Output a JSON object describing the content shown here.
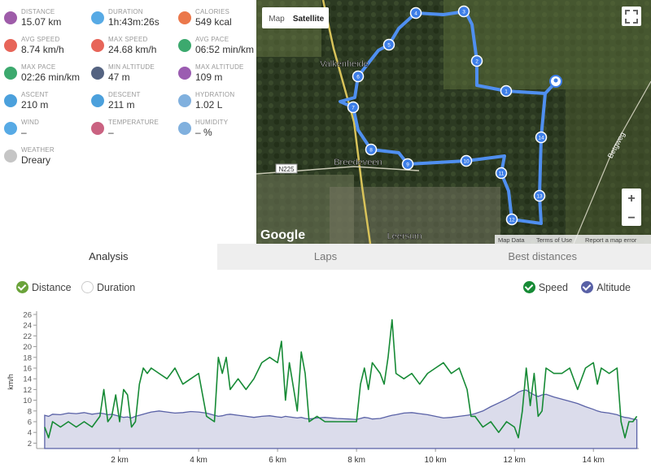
{
  "stats": [
    {
      "label": "DISTANCE",
      "value": "15.07 km"
    },
    {
      "label": "DURATION",
      "value": "1h:43m:26s"
    },
    {
      "label": "CALORIES",
      "value": "549 kcal"
    },
    {
      "label": "AVG SPEED",
      "value": "8.74 km/h"
    },
    {
      "label": "MAX SPEED",
      "value": "24.68 km/h"
    },
    {
      "label": "AVG PACE",
      "value": "06:52 min/km"
    },
    {
      "label": "MAX PACE",
      "value": "02:26 min/km"
    },
    {
      "label": "MIN ALTITUDE",
      "value": "47 m"
    },
    {
      "label": "MAX ALTITUDE",
      "value": "109 m"
    },
    {
      "label": "ASCENT",
      "value": "210 m"
    },
    {
      "label": "DESCENT",
      "value": "211 m"
    },
    {
      "label": "HYDRATION",
      "value": "1.02 L"
    },
    {
      "label": "WIND",
      "value": "–"
    },
    {
      "label": "TEMPERATURE",
      "value": "–"
    },
    {
      "label": "HUMIDITY",
      "value": "– %"
    },
    {
      "label": "WEATHER",
      "value": "Dreary"
    }
  ],
  "map": {
    "view_buttons": [
      "Map",
      "Satellite"
    ],
    "places": [
      "Valkenheide",
      "Breedeveen",
      "Leersum"
    ],
    "road": "N225",
    "street": "Betgweg",
    "logo": "Google",
    "footer": [
      "Map Data",
      "Terms of Use",
      "Report a map error"
    ],
    "zoom": [
      "+",
      "−"
    ],
    "waypoints": [
      "1",
      "2",
      "3",
      "4",
      "5",
      "6",
      "7",
      "8",
      "9",
      "10",
      "11",
      "12",
      "13",
      "14"
    ]
  },
  "tabs": [
    "Analysis",
    "Laps",
    "Best distances"
  ],
  "toggles": [
    "Distance",
    "Duration"
  ],
  "chart_data": {
    "type": "line",
    "ylabel": "km/h",
    "x": [
      0.1,
      0.2,
      0.3,
      0.5,
      0.7,
      0.9,
      1.1,
      1.3,
      1.5,
      1.6,
      1.7,
      1.8,
      1.9,
      2.0,
      2.1,
      2.2,
      2.3,
      2.4,
      2.5,
      2.6,
      2.7,
      2.8,
      3.0,
      3.2,
      3.4,
      3.6,
      3.8,
      4.0,
      4.2,
      4.4,
      4.5,
      4.6,
      4.7,
      4.8,
      5.0,
      5.2,
      5.4,
      5.6,
      5.8,
      6.0,
      6.1,
      6.2,
      6.3,
      6.5,
      6.6,
      6.7,
      6.8,
      7.0,
      7.2,
      7.5,
      7.8,
      8.0,
      8.1,
      8.2,
      8.3,
      8.4,
      8.6,
      8.7,
      8.8,
      8.9,
      9.0,
      9.2,
      9.4,
      9.6,
      9.8,
      10.0,
      10.2,
      10.4,
      10.6,
      10.8,
      10.9,
      11.0,
      11.2,
      11.4,
      11.6,
      11.8,
      12.0,
      12.1,
      12.2,
      12.3,
      12.4,
      12.5,
      12.6,
      12.7,
      12.8,
      13.0,
      13.2,
      13.4,
      13.6,
      13.8,
      14.0,
      14.1,
      14.2,
      14.4,
      14.6,
      14.7,
      14.8,
      14.9,
      15.0,
      15.1
    ],
    "xlim": [
      0,
      15.15
    ],
    "xticks": [
      {
        "value": 2,
        "label": "2 km"
      },
      {
        "value": 4,
        "label": "4 km"
      },
      {
        "value": 6,
        "label": "6 km"
      },
      {
        "value": 8,
        "label": "8 km"
      },
      {
        "value": 10,
        "label": "10 km"
      },
      {
        "value": 12,
        "label": "12 km"
      },
      {
        "value": 14,
        "label": "14 km"
      }
    ],
    "ylim": [
      1,
      26
    ],
    "yticks": [
      2,
      4,
      6,
      8,
      10,
      12,
      14,
      16,
      18,
      20,
      22,
      24,
      26
    ],
    "y2lim": [
      0,
      250
    ],
    "series": [
      {
        "name": "Speed",
        "color": "#168a35",
        "values": [
          5,
          3,
          6,
          5,
          6,
          5,
          6,
          5,
          7,
          12,
          6,
          7,
          11,
          6,
          12,
          11,
          5,
          6,
          13,
          16,
          15,
          16,
          15,
          14,
          16,
          13,
          14,
          15,
          7,
          6,
          18,
          15,
          18,
          12,
          14,
          12,
          14,
          17,
          18,
          17,
          21,
          10,
          17,
          8,
          19,
          15,
          6,
          7,
          6,
          6,
          6,
          6,
          13,
          16,
          12,
          17,
          15,
          13,
          18,
          25,
          15,
          14,
          15,
          13,
          15,
          16,
          17,
          15,
          16,
          12,
          7,
          7,
          5,
          6,
          4,
          6,
          5,
          3,
          8,
          16,
          9,
          15,
          7,
          8,
          16,
          15,
          15,
          16,
          12,
          16,
          17,
          13,
          16,
          15,
          16,
          6,
          3,
          6,
          6,
          7
        ]
      },
      {
        "name": "Altitude",
        "color": "#5961a6",
        "axis": "y2",
        "values": [
          62,
          60,
          64,
          63,
          66,
          65,
          67,
          64,
          66,
          65,
          63,
          64,
          62,
          60,
          58,
          59,
          57,
          60,
          62,
          64,
          66,
          68,
          70,
          68,
          66,
          67,
          69,
          68,
          66,
          62,
          60,
          61,
          63,
          64,
          62,
          60,
          58,
          60,
          61,
          59,
          58,
          60,
          59,
          57,
          58,
          56,
          55,
          57,
          58,
          56,
          55,
          54,
          56,
          58,
          57,
          55,
          56,
          58,
          60,
          62,
          63,
          66,
          67,
          65,
          63,
          60,
          57,
          58,
          60,
          62,
          63,
          65,
          70,
          78,
          85,
          92,
          100,
          105,
          108,
          109,
          104,
          100,
          97,
          100,
          101,
          96,
          92,
          88,
          84,
          78,
          73,
          70,
          68,
          66,
          63,
          60,
          58,
          57,
          55,
          54
        ]
      }
    ]
  }
}
